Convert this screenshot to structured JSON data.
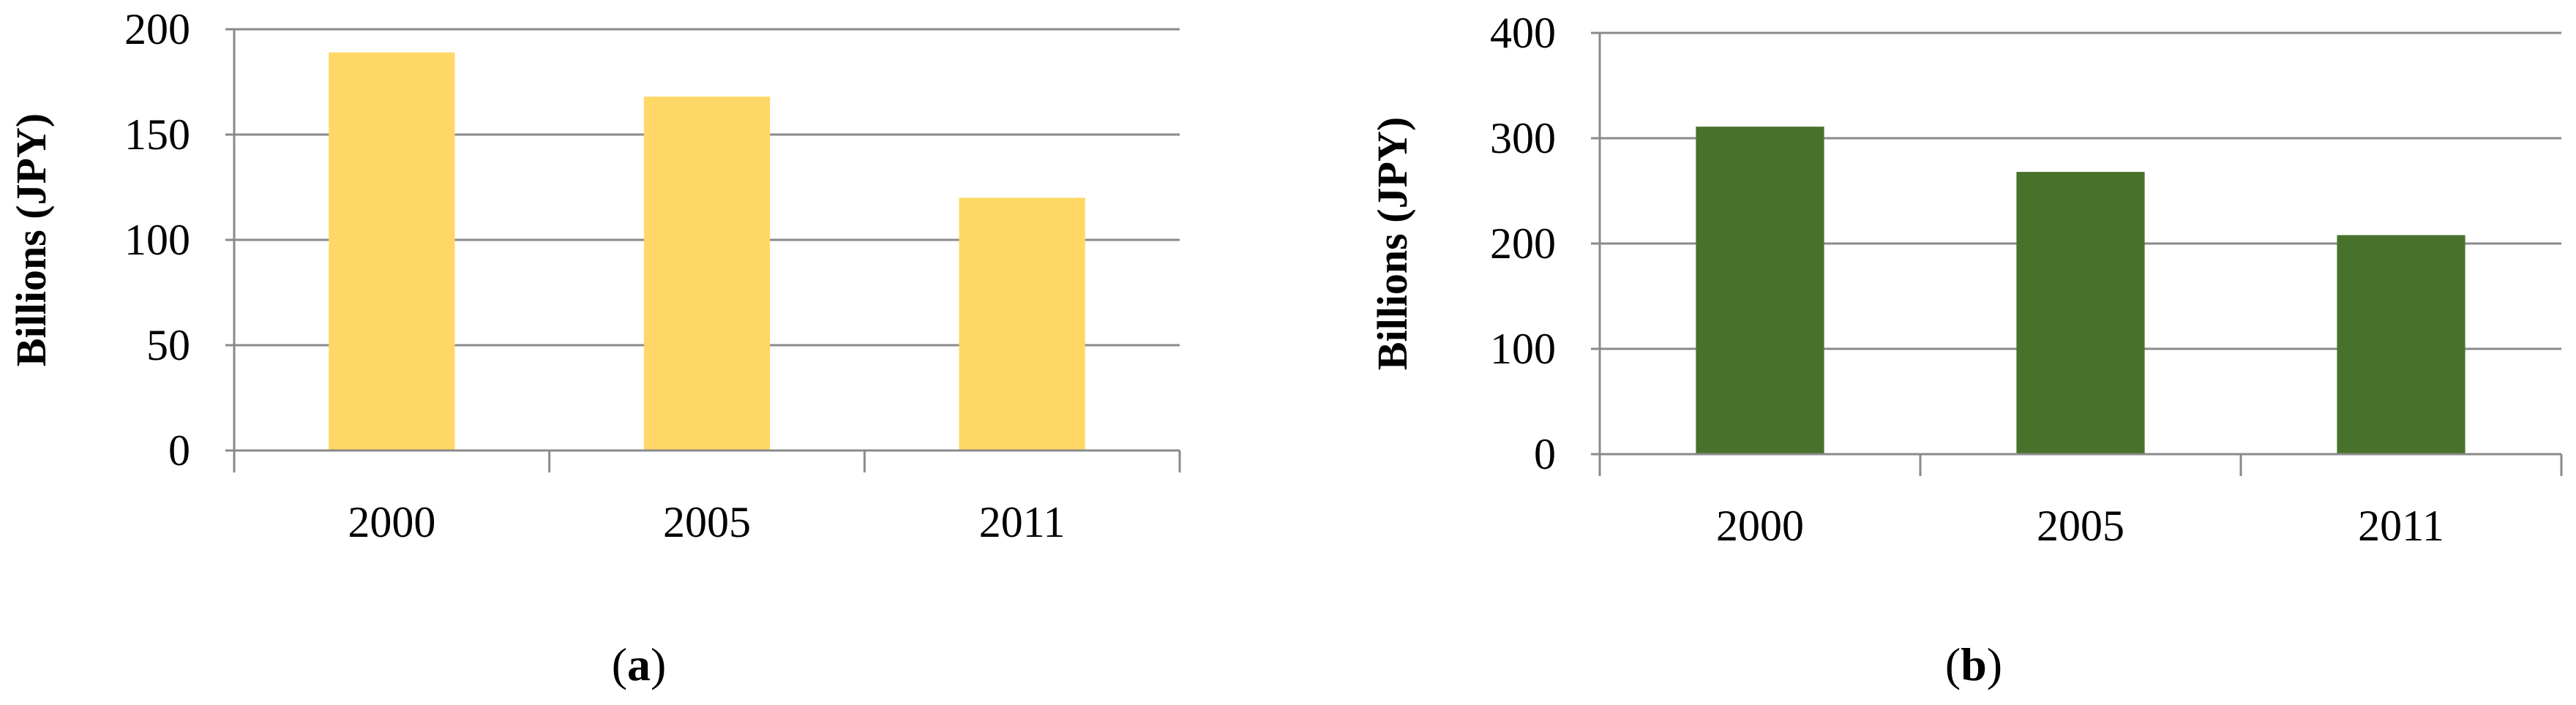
{
  "chart_data": [
    {
      "type": "bar",
      "panel": "a",
      "categories": [
        "2000",
        "2005",
        "2011"
      ],
      "values": [
        189,
        168,
        120
      ],
      "ylabel": "Billions (JPY)",
      "ylim": [
        0,
        200
      ],
      "yticks": [
        0,
        50,
        100,
        150,
        200
      ],
      "grid": true,
      "color": "#FED766"
    },
    {
      "type": "bar",
      "panel": "b",
      "categories": [
        "2000",
        "2005",
        "2011"
      ],
      "values": [
        311,
        268,
        208
      ],
      "ylabel": "Billions (JPY)",
      "ylim": [
        0,
        400
      ],
      "yticks": [
        0,
        100,
        200,
        300,
        400
      ],
      "grid": true,
      "color": "#48722C"
    }
  ],
  "captions": {
    "a_open": "(",
    "a_letter": "a",
    "a_close": ")",
    "b_open": "(",
    "b_letter": "b",
    "b_close": ")"
  }
}
